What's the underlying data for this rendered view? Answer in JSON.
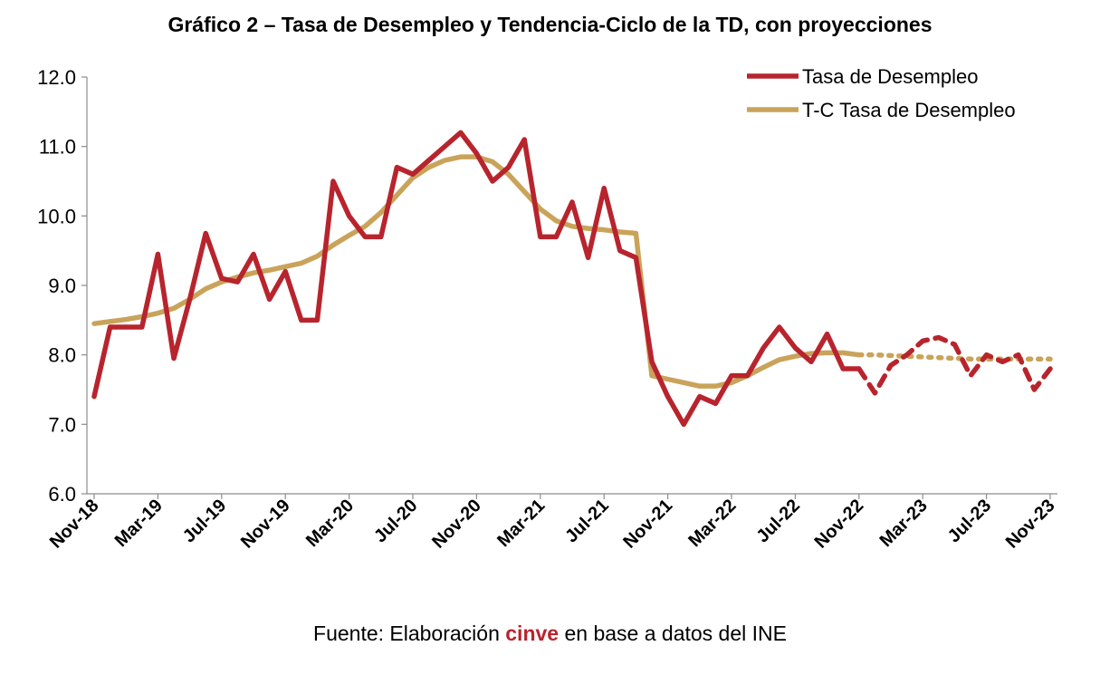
{
  "chart_data": {
    "type": "line",
    "title": "Gráfico 2 – Tasa de Desempleo y Tendencia-Ciclo de la TD, con proyecciones",
    "ylim": [
      6.0,
      12.0
    ],
    "y_ticks": [
      "12.0",
      "11.0",
      "10.0",
      "9.0",
      "8.0",
      "7.0",
      "6.0"
    ],
    "x_tick_labels": [
      "Nov-18",
      "Mar-19",
      "Jul-19",
      "Nov-19",
      "Mar-20",
      "Jul-20",
      "Nov-20",
      "Mar-21",
      "Jul-21",
      "Nov-21",
      "Mar-22",
      "Jul-22",
      "Nov-22",
      "Mar-23",
      "Jul-23",
      "Nov-23"
    ],
    "x_start": "Nov-18",
    "x_end": "Nov-23",
    "legend_position": "top-right",
    "series": [
      {
        "name": "Tasa de Desempleo",
        "color": "#b8242d",
        "values": [
          7.4,
          8.4,
          8.4,
          8.4,
          9.45,
          7.95,
          8.8,
          9.75,
          9.1,
          9.05,
          9.45,
          8.8,
          9.2,
          8.5,
          8.5,
          10.5,
          10.0,
          9.7,
          9.7,
          10.7,
          10.6,
          10.8,
          11.0,
          11.2,
          10.9,
          10.5,
          10.7,
          11.1,
          9.7,
          9.7,
          10.2,
          9.4,
          10.4,
          9.5,
          9.4,
          7.9,
          7.4,
          7.0,
          7.4,
          7.3,
          7.7,
          7.7,
          8.1,
          8.4,
          8.1,
          7.9,
          8.3,
          7.8,
          7.8,
          7.45,
          7.85,
          8.0,
          8.2,
          8.25,
          8.15,
          7.7,
          8.0,
          7.9,
          8.0,
          7.5,
          7.8
        ],
        "projection_from": "Nov-22"
      },
      {
        "name": "T-C Tasa de Desempleo",
        "color": "#c9a35a",
        "values": [
          8.45,
          8.48,
          8.51,
          8.55,
          8.6,
          8.67,
          8.8,
          8.95,
          9.05,
          9.12,
          9.18,
          9.22,
          9.27,
          9.32,
          9.42,
          9.58,
          9.72,
          9.85,
          10.05,
          10.3,
          10.55,
          10.7,
          10.8,
          10.85,
          10.85,
          10.78,
          10.6,
          10.35,
          10.1,
          9.93,
          9.85,
          9.82,
          9.8,
          9.77,
          9.75,
          7.7,
          7.65,
          7.6,
          7.55,
          7.55,
          7.6,
          7.7,
          7.82,
          7.93,
          7.98,
          8.02,
          8.03,
          8.03,
          8.0,
          8.0,
          7.99,
          7.98,
          7.97,
          7.96,
          7.95,
          7.94,
          7.94,
          7.94,
          7.94,
          7.94,
          7.94
        ],
        "projection_from": "Nov-22"
      }
    ]
  },
  "source": {
    "prefix": "Fuente: Elaboración ",
    "brand": "cinve",
    "suffix": " en base a datos del INE"
  }
}
